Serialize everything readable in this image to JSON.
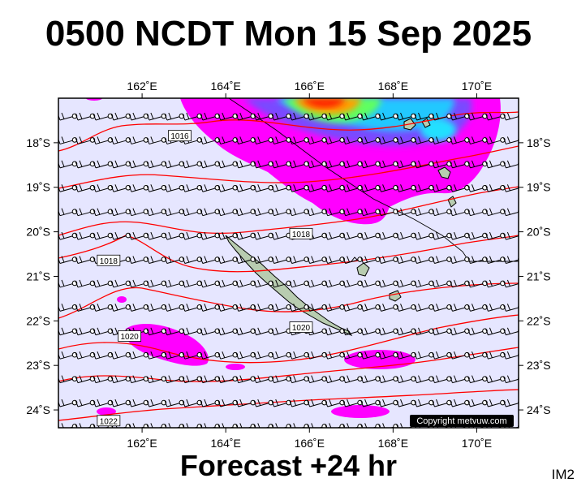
{
  "title": "0500 NCDT Mon 15 Sep 2025",
  "footer": "Forecast +24 hr",
  "tag": "IM2",
  "copyright": "Copyright metvuw.com",
  "colors": {
    "background": "#e6e6ff",
    "isobar": "#ff0000",
    "land": "#b8ccb0",
    "rain_light": "#ff00ff",
    "rain_mid": "#3f7fff",
    "rain_high": "#00e0ff",
    "rain_heavy": "#ffa000",
    "rain_extreme": "#ff0000"
  },
  "map": {
    "lon_range": [
      160,
      171
    ],
    "lat_range": [
      -24.4,
      -17.0
    ],
    "lon_ticks": [
      "162˚E",
      "164˚E",
      "166˚E",
      "168˚E",
      "170˚E"
    ],
    "lat_ticks": [
      "18˚S",
      "19˚S",
      "20˚S",
      "21˚S",
      "22˚S",
      "23˚S",
      "24˚S"
    ],
    "isobar_labels": [
      {
        "text": "1016",
        "lon": 162.9,
        "lat": -17.85
      },
      {
        "text": "1018",
        "lon": 165.8,
        "lat": -20.05
      },
      {
        "text": "1018",
        "lon": 161.2,
        "lat": -20.65
      },
      {
        "text": "1020",
        "lon": 161.7,
        "lat": -22.35
      },
      {
        "text": "1020",
        "lon": 165.8,
        "lat": -22.15
      },
      {
        "text": "1022",
        "lon": 161.2,
        "lat": -24.25
      }
    ]
  }
}
